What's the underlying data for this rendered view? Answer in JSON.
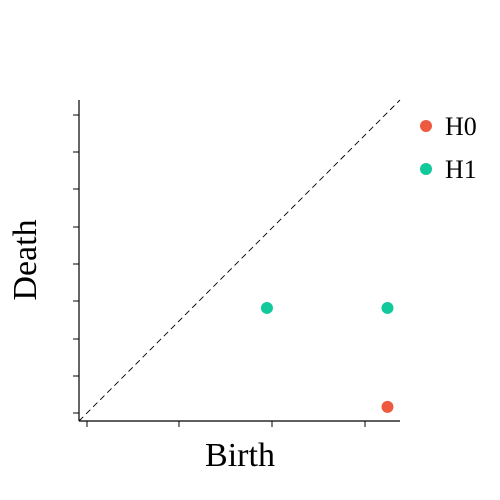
{
  "chart_data": {
    "type": "scatter",
    "title": "",
    "xlabel": "Birth",
    "ylabel": "Death",
    "grid": false,
    "legend_position": "top-right",
    "diagonal": "dashed",
    "xlim": [
      0,
      1
    ],
    "ylim": [
      0,
      1
    ],
    "series": [
      {
        "name": "H0",
        "color": "#ee5a3f",
        "points": [
          {
            "x": 0.982,
            "y": 0.02
          }
        ]
      },
      {
        "name": "H1",
        "color": "#12c99b",
        "points": [
          {
            "x": 0.588,
            "y": 0.34
          },
          {
            "x": 0.982,
            "y": 0.34
          }
        ]
      }
    ]
  }
}
